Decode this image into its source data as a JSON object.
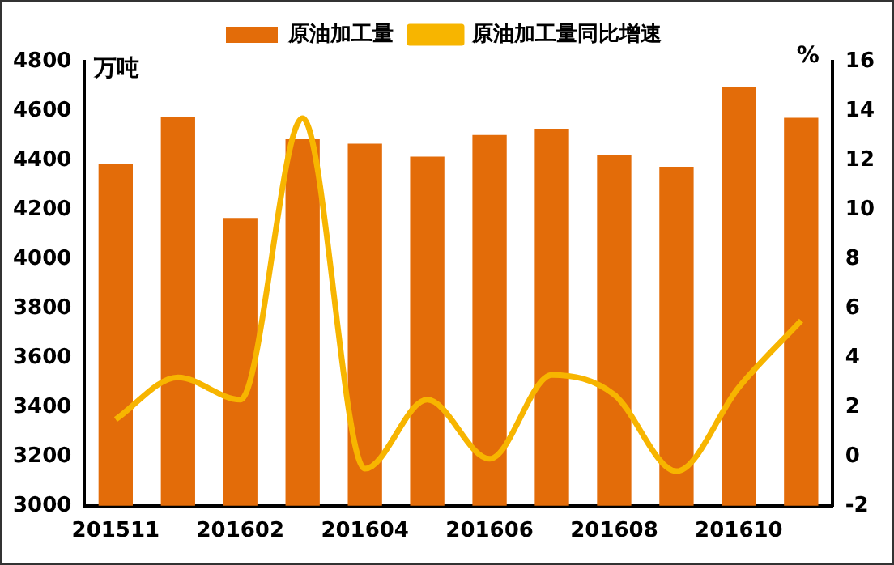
{
  "chart_data": {
    "type": "bar",
    "categories": [
      "201511",
      null,
      "201602",
      null,
      "201604",
      null,
      "201606",
      null,
      "201608",
      null,
      "201610",
      null
    ],
    "series": [
      {
        "name": "原油加工量",
        "color": "#e36c09",
        "values": [
          4384,
          4577,
          4166,
          4485,
          4467,
          4415,
          4502,
          4528,
          4420,
          4374,
          4698,
          4572
        ]
      },
      {
        "name": "原油加工量同比增速",
        "type": "line",
        "axis": "y2",
        "color": "#f7b500",
        "values": [
          1.5,
          3.2,
          2.3,
          13.7,
          -0.5,
          2.3,
          -0.1,
          3.3,
          2.5,
          -0.6,
          2.8,
          5.5
        ]
      }
    ],
    "ylim": [
      3000,
      4800
    ],
    "yticks": [
      3000,
      3200,
      3400,
      3600,
      3800,
      4000,
      4200,
      4400,
      4600,
      4800
    ],
    "y2lim": [
      -2,
      16
    ],
    "y2ticks": [
      -2,
      0,
      2,
      4,
      6,
      8,
      10,
      12,
      14,
      16
    ],
    "annotations": [
      "万吨",
      "%"
    ],
    "legend": "top",
    "grid": false,
    "marker": "none",
    "line_style": "solid"
  }
}
